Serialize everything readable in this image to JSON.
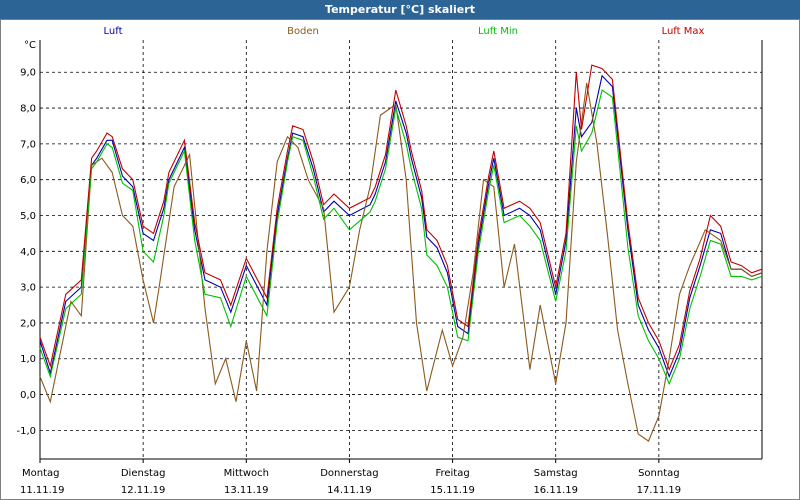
{
  "window": {
    "title": "Temperatur [°C] skaliert"
  },
  "chart_data": {
    "type": "line",
    "title": "Temperatur [°C] skaliert",
    "ylabel": "°C",
    "ylim": [
      -1.8,
      9.9
    ],
    "yticks": [
      "9,0",
      "8,0",
      "7,0",
      "6,0",
      "5,0",
      "4,0",
      "3,0",
      "2,0",
      "1,0",
      "0,0",
      "-1,0"
    ],
    "ytick_values": [
      9,
      8,
      7,
      6,
      5,
      4,
      3,
      2,
      1,
      0,
      -1
    ],
    "grid": true,
    "legend_position": "top",
    "x_days": [
      {
        "day": "Montag",
        "date": "11.11.19"
      },
      {
        "day": "Dienstag",
        "date": "12.11.19"
      },
      {
        "day": "Mittwoch",
        "date": "13.11.19"
      },
      {
        "day": "Donnerstag",
        "date": "14.11.19"
      },
      {
        "day": "Freitag",
        "date": "15.11.19"
      },
      {
        "day": "Samstag",
        "date": "16.11.19"
      },
      {
        "day": "Sonntag",
        "date": "17.11.19"
      }
    ],
    "xlim": [
      0,
      7.0
    ],
    "series": [
      {
        "name": "Luft",
        "color": "#0000b0",
        "x": [
          0,
          0.1,
          0.25,
          0.4,
          0.5,
          0.55,
          0.65,
          0.7,
          0.8,
          0.9,
          1.0,
          1.1,
          1.2,
          1.25,
          1.4,
          1.5,
          1.6,
          1.75,
          1.85,
          2.0,
          2.2,
          2.3,
          2.4,
          2.45,
          2.55,
          2.65,
          2.75,
          2.85,
          3.0,
          3.2,
          3.25,
          3.35,
          3.45,
          3.55,
          3.6,
          3.7,
          3.75,
          3.85,
          3.95,
          4.05,
          4.15,
          4.25,
          4.35,
          4.4,
          4.5,
          4.65,
          4.75,
          4.85,
          5.0,
          5.1,
          5.2,
          5.25,
          5.35,
          5.45,
          5.55,
          5.65,
          5.7,
          5.8,
          5.9,
          6.0,
          6.1,
          6.2,
          6.3,
          6.4,
          6.5,
          6.6,
          6.7,
          6.8,
          6.9,
          7.0
        ],
        "y": [
          1.5,
          0.6,
          2.6,
          3.0,
          6.4,
          6.6,
          7.1,
          7.1,
          6.1,
          5.8,
          4.5,
          4.3,
          5.2,
          6.0,
          6.9,
          4.6,
          3.2,
          3.0,
          2.3,
          3.6,
          2.5,
          5.0,
          6.6,
          7.3,
          7.2,
          6.3,
          5.1,
          5.4,
          5.0,
          5.3,
          5.6,
          6.5,
          8.2,
          7.3,
          6.6,
          5.5,
          4.4,
          4.1,
          3.4,
          1.9,
          1.7,
          4.2,
          5.9,
          6.6,
          5.0,
          5.2,
          5.0,
          4.6,
          2.8,
          4.3,
          8.0,
          7.2,
          7.6,
          8.9,
          8.6,
          5.9,
          4.6,
          2.5,
          1.8,
          1.3,
          0.5,
          1.2,
          2.7,
          3.6,
          4.6,
          4.5,
          3.5,
          3.5,
          3.3,
          3.4
        ]
      },
      {
        "name": "Boden",
        "color": "#8b5a1e",
        "x": [
          0,
          0.1,
          0.2,
          0.3,
          0.4,
          0.5,
          0.6,
          0.7,
          0.8,
          0.9,
          1.0,
          1.1,
          1.15,
          1.3,
          1.45,
          1.6,
          1.7,
          1.8,
          1.9,
          2.0,
          2.1,
          2.2,
          2.3,
          2.4,
          2.5,
          2.6,
          2.75,
          2.85,
          3.0,
          3.1,
          3.2,
          3.3,
          3.45,
          3.55,
          3.65,
          3.75,
          3.9,
          4.0,
          4.1,
          4.2,
          4.3,
          4.4,
          4.5,
          4.6,
          4.75,
          4.85,
          5.0,
          5.1,
          5.2,
          5.3,
          5.4,
          5.5,
          5.6,
          5.7,
          5.8,
          5.9,
          6.0,
          6.1,
          6.2,
          6.3,
          6.45,
          6.6,
          6.7,
          6.8,
          6.9,
          7.0
        ],
        "y": [
          0.5,
          -0.2,
          1.2,
          2.6,
          2.2,
          6.4,
          6.6,
          6.2,
          5.0,
          4.7,
          3.2,
          2.0,
          2.9,
          5.8,
          6.7,
          2.4,
          0.3,
          1.0,
          -0.2,
          1.5,
          0.1,
          4.0,
          6.5,
          7.2,
          6.9,
          6.0,
          5.2,
          2.3,
          3.0,
          4.6,
          5.8,
          7.8,
          8.1,
          6.0,
          2.0,
          0.1,
          1.8,
          0.8,
          1.6,
          3.4,
          6.0,
          5.8,
          3.0,
          4.2,
          0.7,
          2.5,
          0.3,
          2.0,
          6.5,
          8.7,
          7.0,
          4.5,
          1.8,
          0.3,
          -1.1,
          -1.3,
          -0.6,
          1.0,
          2.8,
          3.6,
          4.6,
          4.3,
          3.5,
          3.5,
          3.3,
          3.4
        ]
      },
      {
        "name": "Luft Min",
        "color": "#00c000",
        "x": [
          0,
          0.1,
          0.25,
          0.4,
          0.5,
          0.55,
          0.65,
          0.7,
          0.8,
          0.9,
          1.0,
          1.1,
          1.2,
          1.25,
          1.4,
          1.5,
          1.6,
          1.75,
          1.85,
          2.0,
          2.2,
          2.3,
          2.4,
          2.45,
          2.55,
          2.65,
          2.75,
          2.85,
          3.0,
          3.2,
          3.25,
          3.35,
          3.45,
          3.55,
          3.6,
          3.7,
          3.75,
          3.85,
          3.95,
          4.05,
          4.15,
          4.25,
          4.35,
          4.4,
          4.5,
          4.65,
          4.75,
          4.85,
          5.0,
          5.1,
          5.2,
          5.25,
          5.35,
          5.45,
          5.55,
          5.65,
          5.7,
          5.8,
          5.9,
          6.0,
          6.1,
          6.2,
          6.3,
          6.4,
          6.5,
          6.6,
          6.7,
          6.8,
          6.9,
          7.0
        ],
        "y": [
          1.3,
          0.5,
          2.4,
          2.8,
          6.3,
          6.5,
          7.0,
          6.9,
          5.9,
          5.7,
          4.0,
          3.7,
          5.0,
          5.9,
          6.8,
          4.3,
          2.8,
          2.7,
          1.9,
          3.3,
          2.2,
          4.8,
          6.5,
          7.2,
          7.1,
          6.1,
          4.9,
          5.2,
          4.6,
          5.1,
          5.4,
          6.3,
          8.0,
          7.0,
          6.3,
          5.2,
          3.9,
          3.6,
          3.0,
          1.6,
          1.5,
          4.0,
          5.7,
          6.4,
          4.8,
          5.0,
          4.7,
          4.3,
          2.6,
          4.0,
          7.5,
          6.8,
          7.3,
          8.5,
          8.3,
          5.5,
          4.1,
          2.2,
          1.5,
          1.0,
          0.3,
          1.0,
          2.4,
          3.3,
          4.3,
          4.2,
          3.3,
          3.3,
          3.2,
          3.3
        ]
      },
      {
        "name": "Luft Max",
        "color": "#c00000",
        "x": [
          0,
          0.1,
          0.25,
          0.4,
          0.5,
          0.55,
          0.65,
          0.7,
          0.8,
          0.9,
          1.0,
          1.1,
          1.2,
          1.25,
          1.4,
          1.5,
          1.6,
          1.75,
          1.85,
          2.0,
          2.2,
          2.3,
          2.4,
          2.45,
          2.55,
          2.65,
          2.75,
          2.85,
          3.0,
          3.2,
          3.25,
          3.35,
          3.45,
          3.55,
          3.6,
          3.7,
          3.75,
          3.85,
          3.95,
          4.05,
          4.15,
          4.25,
          4.35,
          4.4,
          4.5,
          4.65,
          4.75,
          4.85,
          5.0,
          5.1,
          5.2,
          5.25,
          5.35,
          5.45,
          5.55,
          5.65,
          5.7,
          5.8,
          5.9,
          6.0,
          6.1,
          6.2,
          6.3,
          6.4,
          6.5,
          6.6,
          6.7,
          6.8,
          6.9,
          7.0
        ],
        "y": [
          1.6,
          0.8,
          2.8,
          3.2,
          6.6,
          6.8,
          7.3,
          7.2,
          6.3,
          6.0,
          4.7,
          4.5,
          5.4,
          6.2,
          7.1,
          4.8,
          3.4,
          3.2,
          2.5,
          3.8,
          2.7,
          5.2,
          6.8,
          7.5,
          7.4,
          6.5,
          5.3,
          5.6,
          5.2,
          5.5,
          5.8,
          6.7,
          8.5,
          7.5,
          6.8,
          5.7,
          4.6,
          4.3,
          3.6,
          2.1,
          1.9,
          4.4,
          6.1,
          6.8,
          5.2,
          5.4,
          5.2,
          4.8,
          3.0,
          4.5,
          9.0,
          7.4,
          9.2,
          9.1,
          8.8,
          6.1,
          4.8,
          2.7,
          2.0,
          1.5,
          0.7,
          1.4,
          2.9,
          3.8,
          5.0,
          4.7,
          3.7,
          3.6,
          3.4,
          3.5
        ]
      }
    ]
  }
}
